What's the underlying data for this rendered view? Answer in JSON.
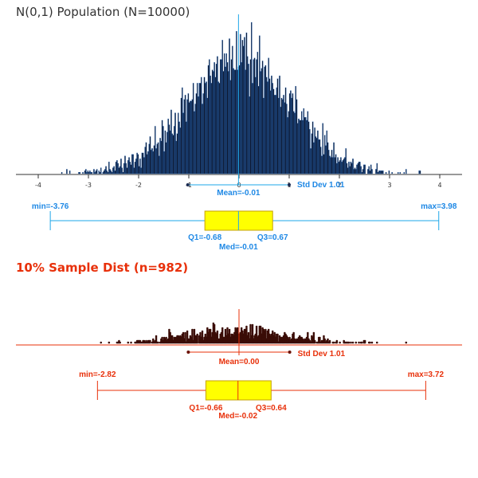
{
  "colors": {
    "population_bars": "#0f1a33",
    "population_outline": "#1e6fd0",
    "population_accent": "#1ea7e8",
    "sample_bars": "#3a0c06",
    "sample_accent": "#e8300a",
    "box_fill": "#ffff00",
    "box_stroke": "#c6a000",
    "axis": "#333333"
  },
  "chart_data": [
    {
      "type": "bar",
      "title": "N(0,1) Population (N=10000)",
      "xlim": [
        -4.2,
        4.2
      ],
      "x_ticks": [
        "-4",
        "-3",
        "-2",
        "-1",
        "0",
        "1",
        "2",
        "3",
        "4"
      ],
      "histogram_bin_width": 0.02,
      "peak_count": 75,
      "stats": {
        "mean": -0.01,
        "std_dev": 1.01,
        "min": -3.76,
        "max": 3.98,
        "q1": -0.68,
        "median": -0.01,
        "q3": 0.67,
        "mean_label": "Mean=-0.01",
        "std_label": "Std Dev 1.01",
        "min_label": "min=-3.76",
        "max_label": "max=3.98",
        "q1_label": "Q1=-0.68",
        "q3_label": "Q3=0.67",
        "median_label": "Med=-0.01"
      }
    },
    {
      "type": "bar",
      "title": "10% Sample Dist (n=982)",
      "xlim": [
        -4.2,
        4.2
      ],
      "histogram_bin_width": 0.02,
      "peak_count": 12,
      "stats": {
        "mean": 0.0,
        "std_dev": 1.01,
        "min": -2.82,
        "max": 3.72,
        "q1": -0.66,
        "median": -0.02,
        "q3": 0.64,
        "mean_label": "Mean=0.00",
        "std_label": "Std Dev 1.01",
        "min_label": "min=-2.82",
        "max_label": "max=3.72",
        "q1_label": "Q1=-0.66",
        "q3_label": "Q3=0.64",
        "median_label": "Med=-0.02"
      }
    }
  ]
}
